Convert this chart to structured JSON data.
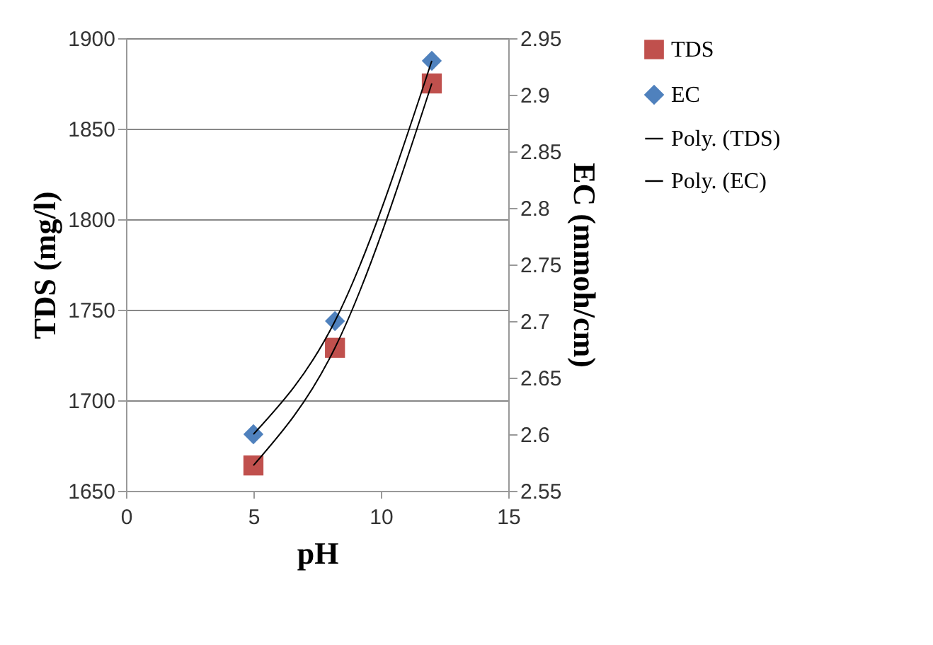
{
  "chart_data": {
    "type": "scatter",
    "xlabel": "pH",
    "ylabel": "TDS (mg/l)",
    "y2label": "EC (mmoh/cm)",
    "x": [
      5,
      8.2,
      12
    ],
    "series": [
      {
        "name": "TDS",
        "type": "scatter",
        "color": "#c0504d",
        "marker": "square",
        "values": [
          1664,
          1729,
          1875
        ]
      },
      {
        "name": "EC",
        "type": "scatter",
        "color": "#4f81bd",
        "marker": "diamond",
        "axis": "y2",
        "values": [
          2.6,
          2.7,
          2.93
        ]
      },
      {
        "name": "Poly. (TDS)",
        "type": "line",
        "color": "#000000",
        "marker": "none",
        "line_style": "solid",
        "values": [
          1664,
          1729,
          1875
        ]
      },
      {
        "name": "Poly. (EC)",
        "type": "line",
        "color": "#000000",
        "marker": "none",
        "line_style": "solid",
        "axis": "y2",
        "values": [
          2.6,
          2.7,
          2.93
        ]
      }
    ],
    "xlim": [
      0,
      15
    ],
    "xticks": [
      0,
      5,
      10,
      15
    ],
    "ylim": [
      1650,
      1900
    ],
    "yticks": [
      1650,
      1700,
      1750,
      1800,
      1850,
      1900
    ],
    "y2lim": [
      2.55,
      2.95
    ],
    "y2ticks": [
      2.55,
      2.6,
      2.65,
      2.7,
      2.75,
      2.8,
      2.85,
      2.9,
      2.95
    ],
    "grid": "y",
    "legend": "right"
  }
}
